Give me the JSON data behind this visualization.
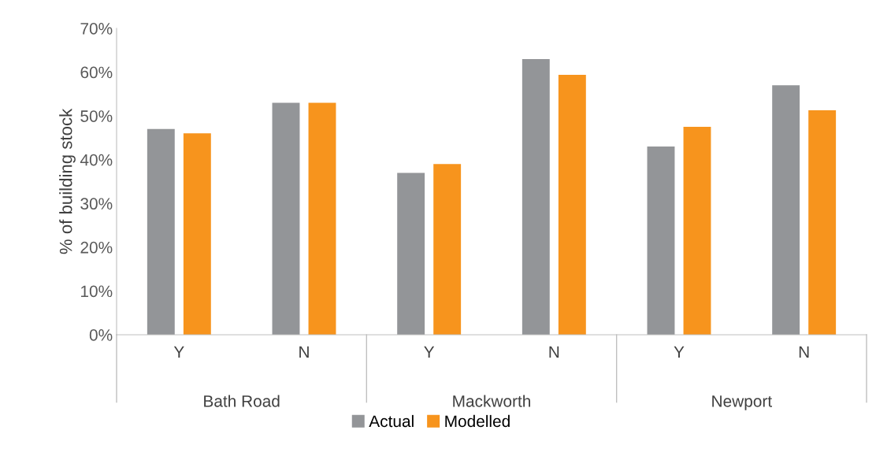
{
  "chart_data": {
    "type": "bar",
    "ylabel": "% of building stock",
    "categories": [
      "Y",
      "N",
      "Y",
      "N",
      "Y",
      "N"
    ],
    "series": [
      {
        "name": "Actual",
        "color": "#939598",
        "values": [
          47,
          53,
          37,
          63,
          43,
          57
        ]
      },
      {
        "name": "Modelled",
        "color": "#f7941d",
        "values": [
          46,
          53,
          39,
          59.4,
          47.5,
          51.3
        ]
      }
    ],
    "annotations": [
      "Bath Road",
      "Mackworth",
      "Newport"
    ],
    "ylim": [
      0,
      70
    ],
    "yticks": [
      {
        "value": 0,
        "label": "0%"
      },
      {
        "value": 10,
        "label": "10%"
      },
      {
        "value": 20,
        "label": "20%"
      },
      {
        "value": 30,
        "label": "30%"
      },
      {
        "value": 40,
        "label": "40%"
      },
      {
        "value": 50,
        "label": "50%"
      },
      {
        "value": 60,
        "label": "60%"
      },
      {
        "value": 70,
        "label": "70%"
      }
    ],
    "grid": false,
    "legend": "bottom"
  }
}
